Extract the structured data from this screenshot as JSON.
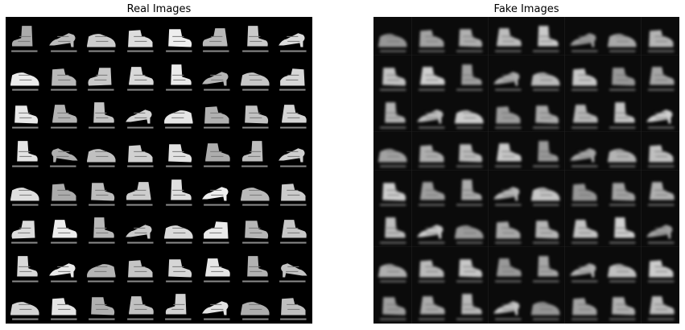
{
  "panels": {
    "real": {
      "title": "Real Images"
    },
    "fake": {
      "title": "Fake Images"
    }
  },
  "grid": {
    "rows": 8,
    "cols": 8
  },
  "colors": {
    "background": "#000000",
    "real_shoe": "#dcdcdc",
    "fake_shoe": "#b8b8b8"
  }
}
